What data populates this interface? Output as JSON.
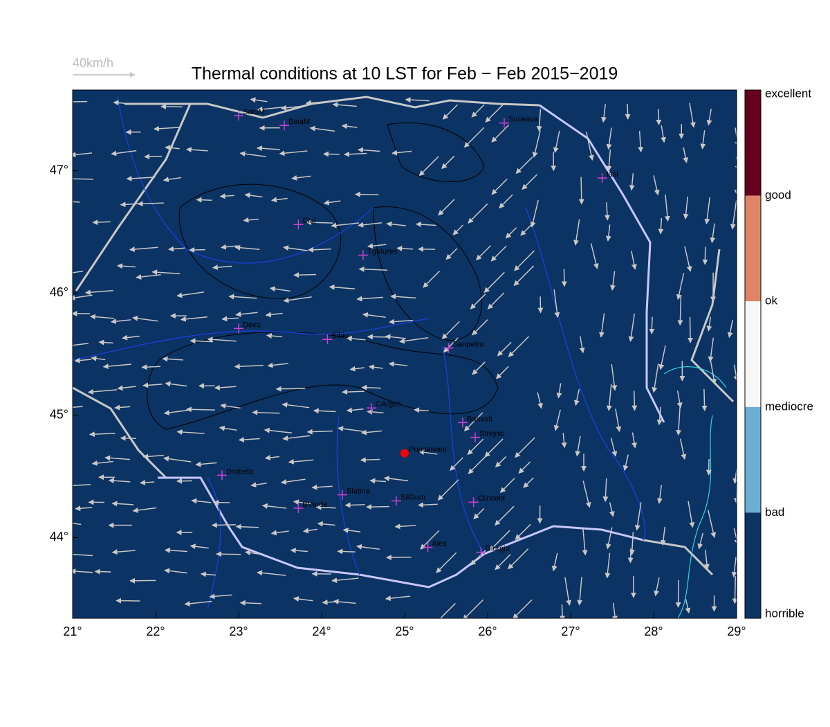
{
  "map": {
    "title": "Thermal conditions at 10 LST for Feb − Feb  2015−2019",
    "wind_scale_label": "40km/h",
    "background_color": "#0b3363",
    "xlim": [
      21,
      29
    ],
    "ylim": [
      43.34,
      47.66
    ],
    "xticks": [
      {
        "value": 21,
        "label": "21°"
      },
      {
        "value": 22,
        "label": "22°"
      },
      {
        "value": 23,
        "label": "23°"
      },
      {
        "value": 24,
        "label": "24°"
      },
      {
        "value": 25,
        "label": "25°"
      },
      {
        "value": 26,
        "label": "26°"
      },
      {
        "value": 27,
        "label": "27°"
      },
      {
        "value": 28,
        "label": "28°"
      },
      {
        "value": 29,
        "label": "29°"
      }
    ],
    "yticks": [
      {
        "value": 44,
        "label": "44°"
      },
      {
        "value": 45,
        "label": "45°"
      },
      {
        "value": 46,
        "label": "46°"
      },
      {
        "value": 47,
        "label": "47°"
      }
    ],
    "colorbar": {
      "labels": [
        "excellent",
        "good",
        "ok",
        "mediocre",
        "bad",
        "horrible"
      ],
      "colors": [
        "#67001f",
        "#e08466",
        "#f7f7f7",
        "#6aaed2",
        "#0b3363"
      ]
    },
    "cities": [
      {
        "name": "SatuM",
        "lon": 23.0,
        "lat": 47.45,
        "marker": "cross"
      },
      {
        "name": "BaiaM",
        "lon": 23.55,
        "lat": 47.37,
        "marker": "cross"
      },
      {
        "name": "Suceava",
        "lon": 26.2,
        "lat": 47.39,
        "marker": "cross"
      },
      {
        "name": "Iasi",
        "lon": 27.38,
        "lat": 46.94,
        "marker": "cross"
      },
      {
        "name": "Cluj",
        "lon": 23.72,
        "lat": 46.56,
        "marker": "cross"
      },
      {
        "name": "TgMures",
        "lon": 24.5,
        "lat": 46.31,
        "marker": "cross"
      },
      {
        "name": "Deva",
        "lon": 23.0,
        "lat": 45.71,
        "marker": "cross"
      },
      {
        "name": "Sibiu",
        "lon": 24.07,
        "lat": 45.62,
        "marker": "cross"
      },
      {
        "name": "Sanpetru",
        "lon": 25.53,
        "lat": 45.55,
        "marker": "cross"
      },
      {
        "name": "CArges",
        "lon": 24.6,
        "lat": 45.06,
        "marker": "cross"
      },
      {
        "name": "Banesti",
        "lon": 25.7,
        "lat": 44.94,
        "marker": "cross"
      },
      {
        "name": "Strejnic",
        "lon": 25.85,
        "lat": 44.82,
        "marker": "cross"
      },
      {
        "name": "Popolovani",
        "lon": 25.0,
        "lat": 44.69,
        "marker": "dot"
      },
      {
        "name": "Drobeta",
        "lon": 22.8,
        "lat": 44.51,
        "marker": "cross"
      },
      {
        "name": "Slatina",
        "lon": 24.25,
        "lat": 44.35,
        "marker": "cross"
      },
      {
        "name": "SilGum",
        "lon": 24.9,
        "lat": 44.3,
        "marker": "cross"
      },
      {
        "name": "BVerde",
        "lon": 23.72,
        "lat": 44.24,
        "marker": "cross"
      },
      {
        "name": "Clincent",
        "lon": 25.83,
        "lat": 44.29,
        "marker": "cross"
      },
      {
        "name": "Alex",
        "lon": 25.28,
        "lat": 43.92,
        "marker": "cross"
      },
      {
        "name": "Giurgiu",
        "lon": 25.92,
        "lat": 43.88,
        "marker": "cross"
      }
    ]
  }
}
